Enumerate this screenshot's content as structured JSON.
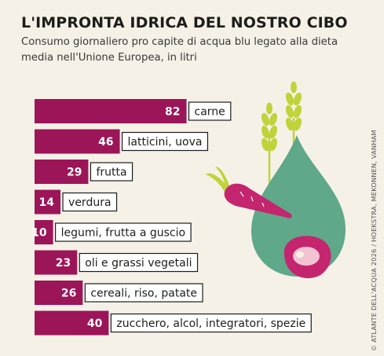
{
  "header": {
    "title": "L'IMPRONTA IDRICA DEL NOSTRO CIBO",
    "subtitle": "Consumo giornaliero pro capite di acqua blu legato alla dieta media nell'Unione Europea, in litri"
  },
  "credit": "© ATLANTE DELL'ACQUA 2026 / HOEKSTRA, MEKONNEN, VANHAM",
  "colors": {
    "bar": "#9c1558",
    "background": "#f6f1e7",
    "drop": "#5fa88a",
    "wheat": "#bfd33a",
    "carrot": "#c4256e",
    "meat": "#c4256e"
  },
  "chart_data": {
    "type": "bar",
    "orientation": "horizontal",
    "title": "L'IMPRONTA IDRICA DEL NOSTRO CIBO",
    "unit": "litri",
    "categories": [
      "carne",
      "latticini, uova",
      "frutta",
      "verdura",
      "legumi, frutta a guscio",
      "oli e grassi vegetali",
      "cereali, riso, patate",
      "zucchero, alcol, integratori, spezie"
    ],
    "values": [
      82,
      46,
      29,
      14,
      10,
      23,
      26,
      40
    ],
    "xlim": [
      0,
      82
    ],
    "grid": false,
    "legend": "none"
  }
}
